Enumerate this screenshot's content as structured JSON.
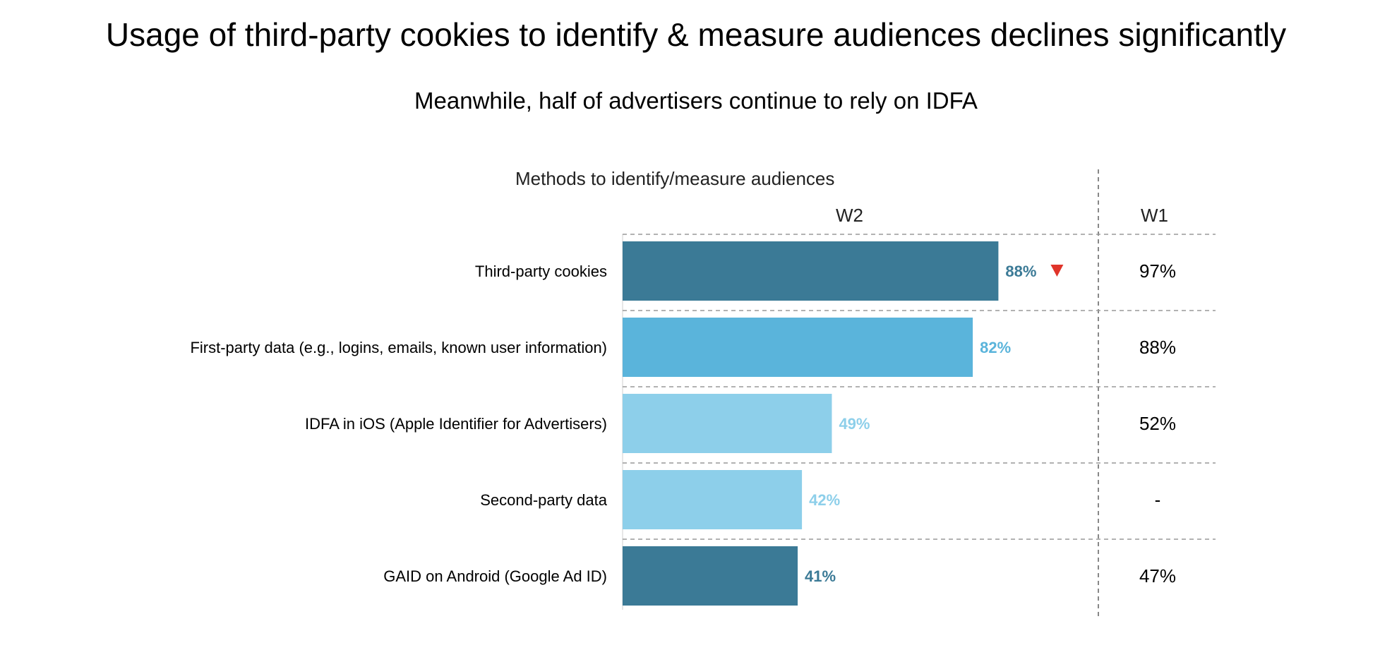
{
  "title": "Usage of third-party cookies to identify & measure audiences declines significantly",
  "subtitle": "Meanwhile, half of advertisers continue to rely on IDFA",
  "chart_heading": "Methods to identify/measure audiences",
  "columns": {
    "w2": "W2",
    "w1": "W1"
  },
  "chart_data": {
    "type": "bar",
    "orientation": "horizontal",
    "categories": [
      "Third-party cookies",
      "First-party data (e.g., logins, emails, known user information)",
      "IDFA in iOS (Apple Identifier for Advertisers)",
      "Second-party data",
      "GAID on Android (Google Ad ID)"
    ],
    "series": [
      {
        "name": "W2",
        "values": [
          88,
          82,
          49,
          42,
          41
        ],
        "labels": [
          "88%",
          "82%",
          "49%",
          "42%",
          "41%"
        ],
        "bar_colors": [
          "#3b7a96",
          "#5ab4db",
          "#8dcfea",
          "#8dcfea",
          "#3b7a96"
        ],
        "label_colors": [
          "#3b7a96",
          "#5ab4db",
          "#8dcfea",
          "#8dcfea",
          "#3b7a96"
        ]
      },
      {
        "name": "W1",
        "values": [
          97,
          88,
          52,
          null,
          47
        ],
        "labels": [
          "97%",
          "88%",
          "52%",
          "-",
          "47%"
        ]
      }
    ],
    "decline_marker": {
      "category_index": 0,
      "color": "#e0342a",
      "icon": "down-triangle-icon"
    },
    "xlim": [
      0,
      100
    ],
    "grid": false,
    "legend": "none"
  }
}
